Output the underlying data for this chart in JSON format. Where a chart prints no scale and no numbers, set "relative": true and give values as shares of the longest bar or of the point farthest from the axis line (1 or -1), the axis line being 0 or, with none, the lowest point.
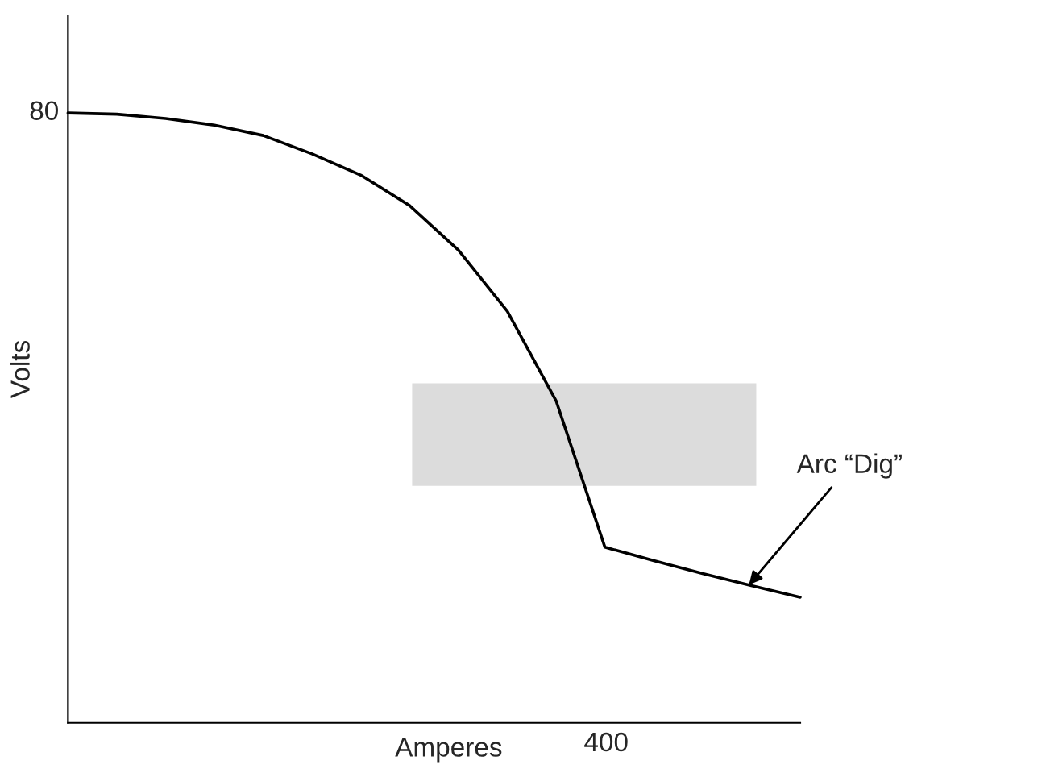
{
  "chart_data": {
    "type": "line",
    "xlabel": "Amperes",
    "ylabel": "Volts",
    "relative": true,
    "categories": [
      null,
      null,
      null,
      null,
      null,
      null,
      null,
      null,
      null,
      null,
      null,
      null,
      null,
      null,
      null,
      null
    ],
    "series": [
      {
        "color": "#000000",
        "values": [
          1,
          0.998,
          0.991,
          0.98,
          0.963,
          0.933,
          0.898,
          0.848,
          0.775,
          0.675,
          0.528,
          0.288,
          0.266,
          0.245,
          0.225,
          0.206
        ]
      }
    ],
    "annotations": [
      "80",
      "400",
      "Arc “Dig”"
    ]
  }
}
